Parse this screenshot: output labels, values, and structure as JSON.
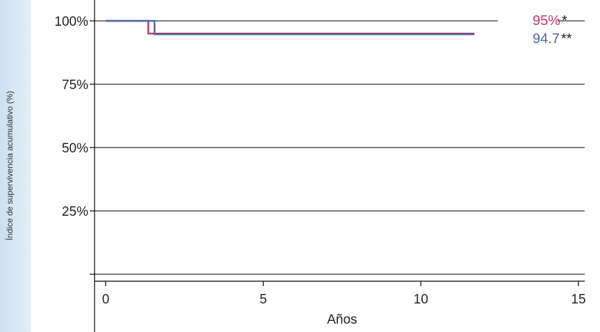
{
  "chart_data": {
    "type": "line",
    "title": "",
    "xlabel": "Años",
    "ylabel": "Índice de supervivencia acumulativo (%)",
    "xlim": [
      0,
      15
    ],
    "ylim": [
      0,
      100
    ],
    "xticks": [
      0,
      5,
      10,
      15
    ],
    "yticks": [
      {
        "value": 100,
        "label": "100%"
      },
      {
        "value": 75,
        "label": "75%"
      },
      {
        "value": 50,
        "label": "50%"
      },
      {
        "value": 25,
        "label": "25%"
      },
      {
        "value": 0,
        "label": ""
      }
    ],
    "grid": true,
    "series": [
      {
        "label": "95%*",
        "color": "#c0396b",
        "x": [
          0,
          1.35,
          1.35,
          11.7
        ],
        "y": [
          100,
          100,
          95,
          95
        ]
      },
      {
        "label": "94.7**",
        "color": "#4d6a99",
        "x": [
          0,
          1.55,
          1.55,
          11.7
        ],
        "y": [
          100,
          100,
          94.7,
          94.7
        ]
      }
    ],
    "end_labels": [
      {
        "value": "95%",
        "mark": "*",
        "color": "#c0396b"
      },
      {
        "value": "94.7",
        "mark": "**",
        "color": "#4d6a99"
      }
    ]
  }
}
